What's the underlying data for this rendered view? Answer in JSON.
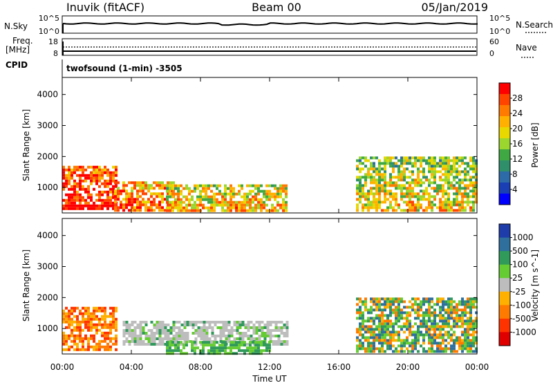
{
  "header": {
    "station": "Inuvik (fitACF)",
    "beam": "Beam 00",
    "date": "05/Jan/2019"
  },
  "top_panels": {
    "nsky_label": "N.Sky",
    "nsearch_label": "N.Search",
    "nsky_ticks": [
      "10^5",
      "10^0"
    ],
    "nsearch_ticks": [
      "10^5",
      "10^0"
    ],
    "freq_label_1": "Freq.",
    "freq_label_2": "[MHz]",
    "freq_ticks": [
      "18",
      "8"
    ],
    "nave_label": "Nave",
    "nave_ticks": [
      "60",
      "0"
    ],
    "cpid_label": "CPID",
    "cpid_value": "twofsound (1-min) -3505"
  },
  "chart_data": [
    {
      "type": "heatmap",
      "title": "",
      "ylabel": "Slant Range [km]",
      "xlabel": "",
      "x_ticks": [
        "00:00",
        "04:00",
        "08:00",
        "12:00",
        "16:00",
        "20:00",
        "00:00"
      ],
      "y_ticks": [
        "1000",
        "2000",
        "3000",
        "4000"
      ],
      "ylim": [
        180,
        4550
      ],
      "colorbar": {
        "label": "Power [dB]",
        "ticks": [
          "28",
          "24",
          "20",
          "16",
          "12",
          "8",
          "4"
        ],
        "colors": [
          "#ff0000",
          "#ff4400",
          "#ff7a00",
          "#ffb000",
          "#e8d800",
          "#9ad62e",
          "#3fa843",
          "#2f8f6a",
          "#2d6aa8",
          "#1a3fb4",
          "#0000ff"
        ]
      },
      "blobs": [
        {
          "t": [
            0.0,
            3.2
          ],
          "r": [
            300,
            1700
          ],
          "level": 0.85
        },
        {
          "t": [
            3.0,
            6.5
          ],
          "r": [
            250,
            1200
          ],
          "level": 0.7
        },
        {
          "t": [
            6.0,
            13.0
          ],
          "r": [
            250,
            1100
          ],
          "level": 0.55
        },
        {
          "t": [
            17.0,
            24.0
          ],
          "r": [
            300,
            2000
          ],
          "level": 0.45
        }
      ]
    },
    {
      "type": "heatmap",
      "title": "",
      "ylabel": "Slant Range [km]",
      "xlabel": "Time UT",
      "x_ticks": [
        "00:00",
        "04:00",
        "08:00",
        "12:00",
        "16:00",
        "20:00",
        "00:00"
      ],
      "y_ticks": [
        "1000",
        "2000",
        "3000",
        "4000"
      ],
      "ylim": [
        180,
        4550
      ],
      "colorbar": {
        "label": "Velocity [m s^-1]",
        "ticks": [
          "1000",
          "500",
          "100",
          "25",
          "-25",
          "-100",
          "-500",
          "-1000"
        ],
        "colors": [
          "#1e3caa",
          "#2e6f9e",
          "#2f9a5a",
          "#66cc33",
          "#bdbdbd",
          "#ffb000",
          "#ff7a00",
          "#ff3300",
          "#e00000"
        ]
      },
      "blobs": [
        {
          "t": [
            0.0,
            3.2
          ],
          "r": [
            300,
            1700
          ],
          "category": "negative"
        },
        {
          "t": [
            3.5,
            13.0
          ],
          "r": [
            450,
            1250
          ],
          "category": "near-zero"
        },
        {
          "t": [
            6.0,
            12.0
          ],
          "r": [
            200,
            600
          ],
          "category": "positive"
        },
        {
          "t": [
            17.0,
            24.0
          ],
          "r": [
            300,
            2000
          ],
          "category": "mixed"
        }
      ]
    }
  ]
}
